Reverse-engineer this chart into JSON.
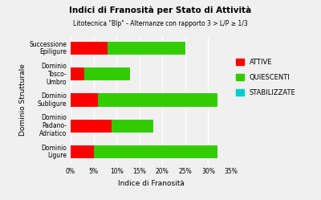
{
  "title": "Indici di Franosità per Stato di Attività",
  "subtitle": "Litotecnica \"Blp\" - Alternanze con rapporto 3 > L/P ≥ 1/3",
  "categories": [
    "Dominio\nLigure",
    "Dominio\nPadano-\nAdriatico",
    "Dominio\nSubligure",
    "Dominio\nTosco-\nUmbro",
    "Successione\nEpiligure"
  ],
  "ylabel": "Dominio Strutturale",
  "xlabel": "Indice di Franosità",
  "attive": [
    5.0,
    9.0,
    6.0,
    3.0,
    8.0
  ],
  "quiescenti": [
    27.0,
    9.0,
    26.0,
    10.0,
    17.0
  ],
  "stabilizzate": [
    0.0,
    0.0,
    0.0,
    0.0,
    0.0
  ],
  "color_attive": "#ff0000",
  "color_quiescenti": "#33cc00",
  "color_stabilizzate": "#00cccc",
  "xlim": [
    0,
    35
  ],
  "xticks": [
    0,
    5,
    10,
    15,
    20,
    25,
    30,
    35
  ],
  "xtick_labels": [
    "0%",
    "5%",
    "10%",
    "15%",
    "20%",
    "25%",
    "30%",
    "35%"
  ],
  "background_color": "#f0f0f0",
  "grid_color": "#ffffff",
  "legend_labels": [
    "ATTIVE",
    "QUIESCENTI",
    "STABILIZZATE"
  ],
  "title_fontsize": 7.5,
  "subtitle_fontsize": 5.5,
  "label_fontsize": 6.5,
  "tick_fontsize": 5.5,
  "legend_fontsize": 6.0,
  "bar_height": 0.5
}
